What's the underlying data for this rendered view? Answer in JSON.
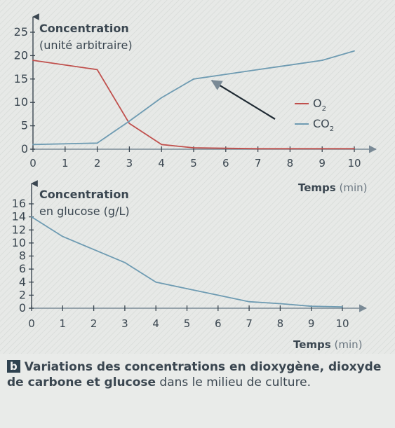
{
  "chart_data": [
    {
      "type": "line",
      "title": "",
      "ylabel_line1": "Concentration",
      "ylabel_line2": "(unité arbitraire)",
      "xlabel_main": "Temps",
      "xlabel_unit": "(min)",
      "x_ticks": [
        "0",
        "1",
        "2",
        "3",
        "4",
        "5",
        "6",
        "7",
        "8",
        "9",
        "10"
      ],
      "y_ticks": [
        "0",
        "5",
        "10",
        "15",
        "20",
        "25"
      ],
      "xlim": [
        0,
        10.5
      ],
      "ylim": [
        0,
        25
      ],
      "legend_position": "right",
      "series": [
        {
          "name": "O2",
          "color": "#c0504d",
          "x": [
            0,
            2,
            3,
            4,
            5,
            6,
            7,
            8,
            9,
            10
          ],
          "y": [
            19,
            17,
            5.5,
            1,
            0.3,
            0.2,
            0.1,
            0.1,
            0.1,
            0.1
          ]
        },
        {
          "name": "CO2",
          "color": "#6e9bb2",
          "x": [
            0,
            2,
            3,
            4,
            5,
            6,
            7,
            8,
            9,
            10
          ],
          "y": [
            1,
            1.3,
            6,
            11,
            15,
            16,
            17,
            18,
            19,
            21
          ]
        }
      ]
    },
    {
      "type": "line",
      "title": "",
      "ylabel_line1": "Concentration",
      "ylabel_line2": "en glucose (g/L)",
      "xlabel_main": "Temps",
      "xlabel_unit": "(min)",
      "x_ticks": [
        "0",
        "1",
        "2",
        "3",
        "4",
        "5",
        "6",
        "7",
        "8",
        "9",
        "10"
      ],
      "y_ticks": [
        "0",
        "2",
        "4",
        "6",
        "8",
        "10",
        "12",
        "14",
        "16"
      ],
      "xlim": [
        0,
        10.5
      ],
      "ylim": [
        0,
        16
      ],
      "series": [
        {
          "name": "",
          "color": "#6e9bb2",
          "x": [
            0,
            1,
            2,
            3,
            4,
            5,
            6,
            7,
            8,
            9,
            10
          ],
          "y": [
            14,
            11,
            9,
            7,
            4,
            3,
            2,
            1,
            0.7,
            0.3,
            0.2
          ]
        }
      ]
    }
  ],
  "caption": {
    "letter": "b",
    "bold_text": "Variations des concentrations en dioxygène, dioxyde de carbone et glucose",
    "normal_text": " dans le milieu de culture."
  }
}
